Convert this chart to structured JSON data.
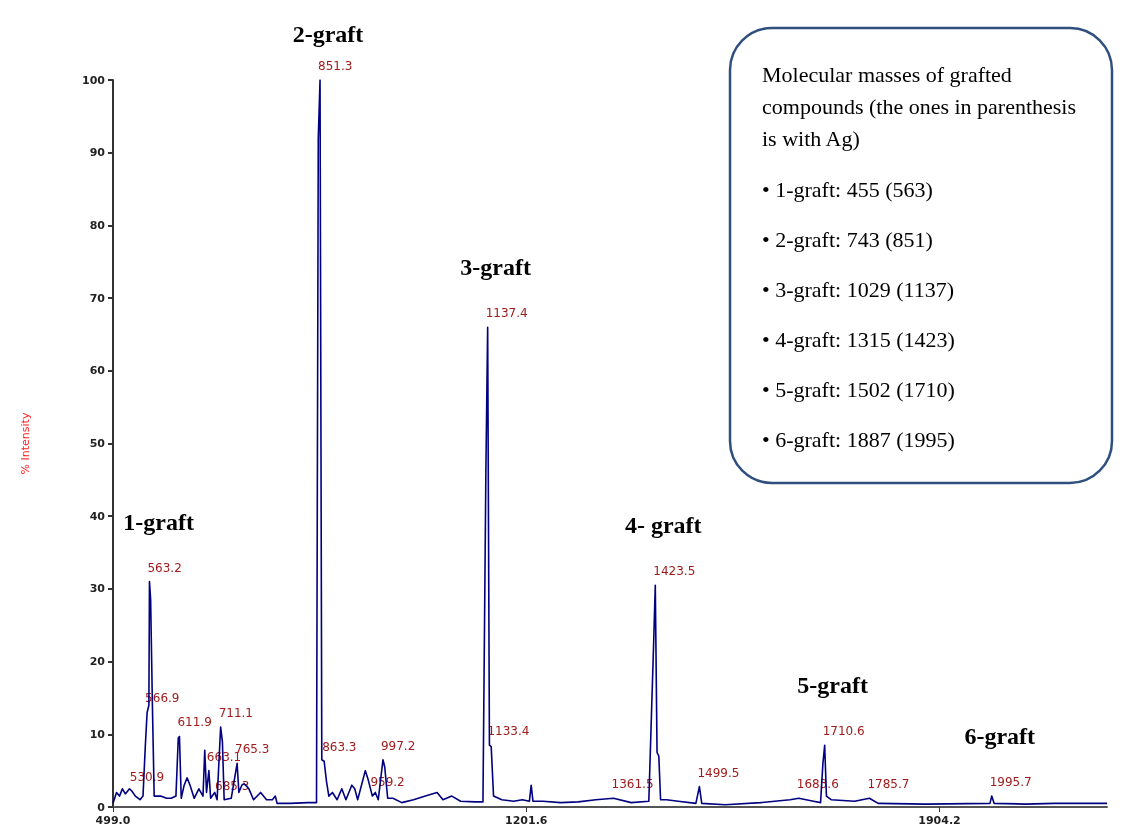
{
  "chart_data": {
    "type": "line",
    "ylabel": "% Intensity",
    "xlim": [
      499,
      2189
    ],
    "xticks": [
      {
        "value": 499,
        "label": "499.0"
      },
      {
        "value": 1201.6,
        "label": "1201.6"
      },
      {
        "value": 1904.2,
        "label": "1904.2"
      }
    ],
    "ylim": [
      0,
      100
    ],
    "yticks": [
      0,
      10,
      20,
      30,
      40,
      50,
      60,
      70,
      80,
      90,
      100
    ],
    "grid": false,
    "marker": "none",
    "series": [
      {
        "color": "#000080",
        "x": [
          499,
          505,
          510,
          515,
          520,
          527,
          531,
          537,
          545,
          550,
          554,
          557,
          560,
          561,
          563,
          566,
          569,
          580,
          590,
          598,
          606,
          610,
          612,
          615,
          620,
          625,
          630,
          637,
          645,
          652,
          655,
          658,
          662,
          665,
          672,
          676,
          682,
          685,
          688,
          700,
          710,
          713,
          718,
          722,
          730,
          738,
          750,
          760,
          770,
          775,
          778,
          800,
          830,
          845,
          848,
          851,
          854,
          858,
          862,
          866,
          872,
          880,
          888,
          895,
          905,
          910,
          915,
          928,
          932,
          940,
          945,
          950,
          958,
          961,
          966,
          975,
          990,
          1010,
          1030,
          1050,
          1060,
          1075,
          1090,
          1115,
          1128,
          1133,
          1136,
          1139,
          1142,
          1146,
          1160,
          1180,
          1195,
          1207,
          1210,
          1213,
          1230,
          1260,
          1290,
          1320,
          1350,
          1380,
          1410,
          1418,
          1421,
          1424,
          1427,
          1430,
          1440,
          1460,
          1490,
          1496,
          1500,
          1540,
          1600,
          1650,
          1665,
          1690,
          1702,
          1706,
          1709,
          1712,
          1720,
          1760,
          1785,
          1800,
          1880,
          1990,
          1993,
          1997,
          2050,
          2100,
          2189
        ],
        "values": [
          0.5,
          2,
          1.5,
          2.5,
          1.8,
          2.5,
          2.2,
          1.5,
          1,
          1.5,
          8.5,
          13,
          14,
          31,
          28.5,
          14,
          1.5,
          1.5,
          1.2,
          1.2,
          1.5,
          9.5,
          9.7,
          1.2,
          3,
          4,
          3,
          1.2,
          2.5,
          1.5,
          7.8,
          2,
          5,
          1.2,
          2,
          1,
          11,
          9,
          1,
          1.2,
          6,
          2,
          3,
          3.2,
          2.5,
          1,
          2,
          1,
          1,
          1.5,
          0.5,
          0.5,
          0.6,
          0.6,
          92,
          100,
          6.5,
          6.3,
          3.5,
          1.5,
          2,
          1,
          2.5,
          1,
          3,
          2.5,
          1,
          5,
          4,
          1.5,
          2,
          1,
          6.5,
          5.5,
          1.2,
          1.2,
          0.6,
          1,
          1.5,
          2,
          1,
          1.5,
          0.8,
          0.7,
          0.7,
          46.5,
          66,
          8.5,
          8.3,
          1.5,
          1,
          0.8,
          1,
          0.8,
          3,
          0.8,
          0.8,
          0.6,
          0.7,
          1,
          1.2,
          0.6,
          0.8,
          22,
          30.5,
          7.5,
          7,
          1,
          1,
          0.8,
          0.5,
          2.8,
          0.5,
          0.3,
          0.6,
          1,
          1.2,
          0.8,
          0.6,
          6,
          8.5,
          1.5,
          1,
          0.8,
          1.2,
          0.5,
          0.4,
          0.5,
          1.5,
          0.5,
          0.4,
          0.5,
          0.5
        ]
      }
    ],
    "annotations": [
      {
        "text": "530.9",
        "x": 531,
        "y": 2.2
      },
      {
        "text": "566.9",
        "x": 557,
        "y": 13
      },
      {
        "text": "563.2",
        "x": 561,
        "y": 31
      },
      {
        "text": "611.9",
        "x": 612,
        "y": 9.7
      },
      {
        "text": "663.1",
        "x": 662,
        "y": 5
      },
      {
        "text": "685.3",
        "x": 676,
        "y": 1
      },
      {
        "text": "711.1",
        "x": 682,
        "y": 11
      },
      {
        "text": "765.3",
        "x": 710,
        "y": 6
      },
      {
        "text": "851.3",
        "x": 851,
        "y": 100
      },
      {
        "text": "863.3",
        "x": 858,
        "y": 6.3
      },
      {
        "text": "959.2",
        "x": 940,
        "y": 1.5
      },
      {
        "text": "997.2",
        "x": 958,
        "y": 6.5
      },
      {
        "text": "1137.4",
        "x": 1136,
        "y": 66
      },
      {
        "text": "1133.4",
        "x": 1139,
        "y": 8.5
      },
      {
        "text": "1361.5",
        "x": 1350,
        "y": 1.2
      },
      {
        "text": "1423.5",
        "x": 1421,
        "y": 30.5
      },
      {
        "text": "1499.5",
        "x": 1496,
        "y": 2.8
      },
      {
        "text": "1683.6",
        "x": 1665,
        "y": 1.2
      },
      {
        "text": "1710.6",
        "x": 1709,
        "y": 8.5
      },
      {
        "text": "1785.7",
        "x": 1785,
        "y": 1.2
      },
      {
        "text": "1995.7",
        "x": 1993,
        "y": 1.5
      },
      {
        "text": "1-graft",
        "x": 563,
        "y": 31
      },
      {
        "text": "2-graft",
        "x": 851,
        "y": 100
      },
      {
        "text": "3-graft",
        "x": 1136,
        "y": 66
      },
      {
        "text": "4- graft",
        "x": 1421,
        "y": 30.5
      },
      {
        "text": "5-graft",
        "x": 1709,
        "y": 8.5
      },
      {
        "text": "6-graft",
        "x": 1993,
        "y": 1.5
      },
      "Molecular masses of grafted compounds (the ones in parenthesis is with Ag)",
      "• 1-graft: 455 (563)",
      "• 2-graft: 743 (851)",
      "• 3-graft: 1029 (1137)",
      "• 4-graft: 1315 (1423)",
      "• 5-graft: 1502 (1710)",
      "• 6-graft: 1887 (1995)"
    ]
  }
}
